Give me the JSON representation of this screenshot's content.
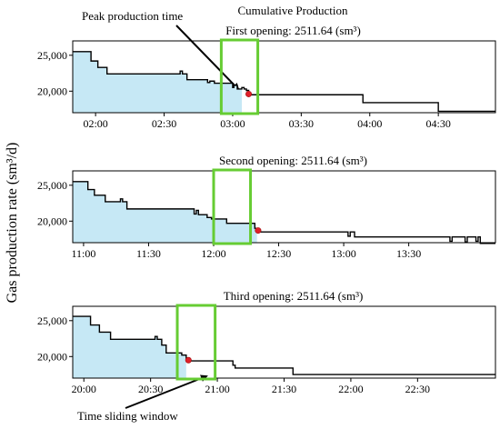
{
  "figure": {
    "ylabel": "Gas production rate (sm³/d)",
    "top_caption": "Cumulative Production",
    "annotation_peak": "Peak production time",
    "annotation_window": "Time sliding window",
    "fill_color": "#c6e8f5",
    "window_color": "#66cc33",
    "line_color": "#000000",
    "marker_color": "#e0202a"
  },
  "chart_data": [
    {
      "type": "line",
      "title": "First opening: 2511.64 (sm³)",
      "xlabel": "",
      "ylabel": "Gas production rate (sm³/d)",
      "x_unit": "minutes since 00:00",
      "xlim": [
        110,
        295
      ],
      "ylim": [
        17000,
        27000
      ],
      "xtick_values": [
        120,
        150,
        180,
        210,
        240,
        270
      ],
      "xtick_labels": [
        "02:00",
        "02:30",
        "03:00",
        "03:30",
        "04:00",
        "04:30"
      ],
      "ytick_values": [
        20000,
        25000
      ],
      "ytick_labels": [
        "20,000",
        "25,000"
      ],
      "series": [
        {
          "x": [
            110,
            118,
            118,
            121,
            121,
            125,
            125,
            157,
            157,
            158,
            158,
            160,
            160,
            169,
            169,
            170,
            170,
            172,
            172,
            180,
            180,
            180.5,
            180.5,
            182,
            182,
            184,
            184,
            185,
            185,
            186,
            186,
            187,
            187,
            188,
            188,
            237,
            237,
            270,
            270,
            295
          ],
          "y": [
            25500,
            25500,
            24200,
            24200,
            23300,
            23300,
            22400,
            22400,
            22800,
            22800,
            22400,
            22400,
            21600,
            21600,
            21200,
            21200,
            21400,
            21400,
            21100,
            21100,
            20500,
            20500,
            20800,
            20800,
            20300,
            20300,
            20500,
            20500,
            20300,
            20300,
            20100,
            20100,
            19600,
            19600,
            19500,
            19500,
            18400,
            18400,
            17200,
            17200
          ]
        }
      ],
      "fill_until_x": 184,
      "window_x": [
        175,
        191
      ],
      "peak_point": {
        "x": 187,
        "y": 19600
      }
    },
    {
      "type": "line",
      "title": "Second opening: 2511.64 (sm³)",
      "xlabel": "",
      "ylabel": "Gas production rate (sm³/d)",
      "x_unit": "minutes since 00:00",
      "xlim": [
        655,
        850
      ],
      "ylim": [
        17000,
        27000
      ],
      "xtick_values": [
        660,
        690,
        720,
        750,
        780,
        810
      ],
      "xtick_labels": [
        "11:00",
        "11:30",
        "12:00",
        "12:30",
        "13:00",
        "13:30"
      ],
      "ytick_values": [
        20000,
        25000
      ],
      "ytick_labels": [
        "20,000",
        "25,000"
      ],
      "series": [
        {
          "x": [
            655,
            662,
            662,
            665,
            665,
            670,
            670,
            677,
            677,
            678,
            678,
            680,
            680,
            711,
            711,
            712,
            712,
            713,
            713,
            717,
            717,
            719,
            719,
            726,
            726,
            739,
            739,
            740,
            740,
            740.5,
            740.5,
            782,
            782,
            783,
            783,
            785,
            785,
            829,
            829,
            830,
            830,
            836,
            836,
            837,
            837,
            841,
            841,
            842,
            842,
            843,
            843,
            850
          ],
          "y": [
            25500,
            25500,
            24400,
            24400,
            23600,
            23600,
            22700,
            22700,
            23100,
            23100,
            22700,
            22700,
            21700,
            21700,
            21000,
            21000,
            21500,
            21500,
            20900,
            20900,
            20500,
            20500,
            20300,
            20300,
            19700,
            19700,
            19000,
            19000,
            18700,
            18700,
            18500,
            18500,
            17900,
            17900,
            18500,
            18500,
            17800,
            17800,
            17200,
            17200,
            17800,
            17800,
            17100,
            17100,
            17800,
            17800,
            17200,
            17200,
            17800,
            17800,
            16900,
            16900
          ]
        }
      ],
      "fill_until_x": 740,
      "window_x": [
        720,
        737
      ],
      "peak_point": {
        "x": 740.5,
        "y": 18700
      }
    },
    {
      "type": "line",
      "title": "Third opening: 2511.64 (sm³)",
      "xlabel": "",
      "ylabel": "Gas production rate (sm³/d)",
      "x_unit": "minutes since 00:00",
      "xlim": [
        1195,
        1385
      ],
      "ylim": [
        17000,
        27000
      ],
      "xtick_values": [
        1200,
        1230,
        1260,
        1290,
        1320,
        1350
      ],
      "xtick_labels": [
        "20:00",
        "20:30",
        "21:00",
        "21:30",
        "22:00",
        "22:30"
      ],
      "ytick_values": [
        20000,
        25000
      ],
      "ytick_labels": [
        "20,000",
        "25,000"
      ],
      "series": [
        {
          "x": [
            1195,
            1203,
            1203,
            1207,
            1207,
            1212,
            1212,
            1232,
            1232,
            1233,
            1233,
            1235,
            1235,
            1237,
            1237,
            1244,
            1244,
            1246,
            1246,
            1247,
            1247,
            1248,
            1248,
            1267,
            1267,
            1268,
            1268,
            1294,
            1294,
            1296,
            1296,
            1385
          ],
          "y": [
            25600,
            25600,
            24400,
            24400,
            23400,
            23400,
            22400,
            22400,
            22800,
            22800,
            22400,
            22400,
            21600,
            21600,
            20500,
            20500,
            20200,
            20200,
            19700,
            19700,
            19400,
            19400,
            19400,
            19400,
            18800,
            18800,
            18400,
            18400,
            17500,
            17500,
            17500,
            17500
          ]
        }
      ],
      "fill_until_x": 1246,
      "window_x": [
        1242,
        1259
      ],
      "peak_point": {
        "x": 1247,
        "y": 19500
      }
    }
  ]
}
